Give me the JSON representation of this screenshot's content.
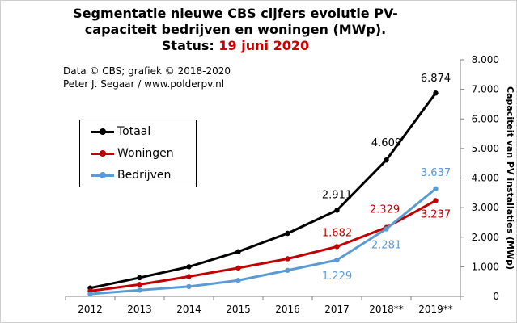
{
  "title": {
    "line1": "Segmentatie nieuwe CBS cijfers evolutie PV-",
    "line2": "capaciteit bedrijven en woningen (MWp).",
    "status_label": "Status:",
    "status_date": "19 juni 2020"
  },
  "credits": {
    "line1": "Data © CBS; grafiek © 2018-2020",
    "line2": "Peter J. Segaar / www.polderpv.nl"
  },
  "colors": {
    "totaal": "#000000",
    "woningen": "#c00000",
    "bedrijven": "#5b9bd5"
  },
  "chart_data": {
    "type": "line",
    "title": "Segmentatie nieuwe CBS cijfers evolutie PV-capaciteit bedrijven en woningen (MWp). Status: 19 juni 2020",
    "xlabel": "",
    "ylabel": "Capaciteit van PV installaties (MWp)",
    "categories": [
      "2012",
      "2013",
      "2014",
      "2015",
      "2016",
      "2017",
      "2018**",
      "2019**"
    ],
    "ylim": [
      0,
      8000
    ],
    "yticks": [
      0,
      1000,
      2000,
      3000,
      4000,
      5000,
      6000,
      7000,
      8000
    ],
    "ytick_labels": [
      "0",
      "1.000",
      "2.000",
      "3.000",
      "4.000",
      "5.000",
      "6.000",
      "7.000",
      "8.000"
    ],
    "grid": false,
    "legend_position": "upper-left",
    "series": [
      {
        "name": "Totaal",
        "color": "#000000",
        "values": [
          280,
          630,
          1000,
          1510,
          2130,
          2911,
          4609,
          6874
        ]
      },
      {
        "name": "Woningen",
        "color": "#c00000",
        "values": [
          180,
          400,
          670,
          960,
          1270,
          1682,
          2329,
          3237
        ]
      },
      {
        "name": "Bedrijven",
        "color": "#5b9bd5",
        "values": [
          80,
          210,
          330,
          540,
          880,
          1229,
          2281,
          3637
        ]
      }
    ],
    "data_labels": [
      {
        "series": 0,
        "index": 5,
        "text": "2.911"
      },
      {
        "series": 0,
        "index": 6,
        "text": "4.609"
      },
      {
        "series": 0,
        "index": 7,
        "text": "6.874"
      },
      {
        "series": 1,
        "index": 5,
        "text": "1.682"
      },
      {
        "series": 1,
        "index": 6,
        "text": "2.329"
      },
      {
        "series": 1,
        "index": 7,
        "text": "3.237"
      },
      {
        "series": 2,
        "index": 5,
        "text": "1.229"
      },
      {
        "series": 2,
        "index": 6,
        "text": "2.281"
      },
      {
        "series": 2,
        "index": 7,
        "text": "3.637"
      }
    ]
  }
}
